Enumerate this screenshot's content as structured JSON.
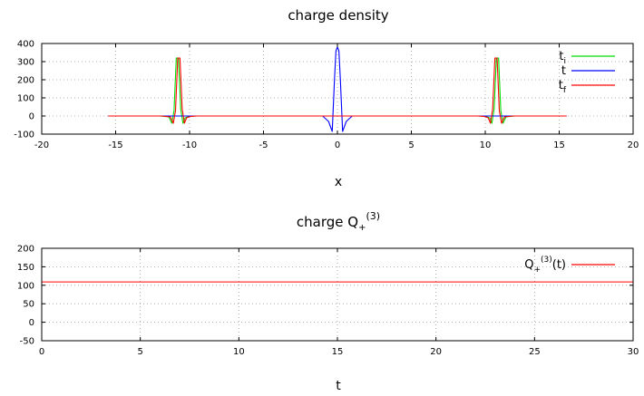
{
  "chart_data": [
    {
      "type": "line",
      "title": "charge density",
      "xlabel": "x",
      "ylabel": "",
      "xlim": [
        -20,
        20
      ],
      "ylim": [
        -100,
        400
      ],
      "xticks": [
        -20,
        -15,
        -10,
        -5,
        0,
        5,
        10,
        15,
        20
      ],
      "yticks": [
        -100,
        0,
        100,
        200,
        300,
        400
      ],
      "grid": true,
      "legend_position": "top-right",
      "series": [
        {
          "name": "t",
          "name_sub": "i",
          "color": "#00dd00",
          "x": [
            -15.5,
            -12.0,
            -11.4,
            -11.2,
            -11.05,
            -10.9,
            -10.75,
            -10.6,
            -10.45,
            -10.3,
            -10.0,
            -9.6,
            9.6,
            10.0,
            10.3,
            10.45,
            10.6,
            10.75,
            10.9,
            11.05,
            11.2,
            11.4,
            12.0,
            15.5
          ],
          "y": [
            0,
            0,
            -5,
            -40,
            30,
            320,
            320,
            40,
            -40,
            -10,
            -2,
            0,
            0,
            -2,
            -10,
            -40,
            40,
            320,
            320,
            30,
            -40,
            -5,
            0,
            0
          ]
        },
        {
          "name": "t",
          "name_sub": "",
          "color": "#0000ff",
          "x": [
            -15.5,
            -1.0,
            -0.6,
            -0.35,
            -0.2,
            -0.1,
            0.0,
            0.1,
            0.2,
            0.35,
            0.6,
            1.0,
            15.5
          ],
          "y": [
            0,
            0,
            -30,
            -85,
            200,
            360,
            380,
            360,
            200,
            -85,
            -30,
            0,
            0
          ]
        },
        {
          "name": "t",
          "name_sub": "f",
          "color": "#ff0000",
          "x": [
            -15.5,
            -11.9,
            -11.3,
            -11.1,
            -10.95,
            -10.8,
            -10.65,
            -10.5,
            -10.35,
            -10.2,
            -9.9,
            -9.5,
            9.5,
            9.9,
            10.2,
            10.35,
            10.5,
            10.65,
            10.8,
            10.95,
            11.1,
            11.3,
            11.9,
            15.5
          ],
          "y": [
            0,
            0,
            -5,
            -40,
            30,
            320,
            320,
            40,
            -40,
            -10,
            -2,
            0,
            0,
            -2,
            -10,
            -40,
            40,
            320,
            320,
            30,
            -40,
            -5,
            0,
            0
          ]
        }
      ]
    },
    {
      "type": "line",
      "title": "charge Q",
      "title_sub": "+",
      "title_sup": "(3)",
      "xlabel": "t",
      "ylabel": "",
      "xlim": [
        0,
        30
      ],
      "ylim": [
        -50,
        200
      ],
      "xticks": [
        0,
        5,
        10,
        15,
        20,
        25,
        30
      ],
      "yticks": [
        -50,
        0,
        50,
        100,
        150,
        200
      ],
      "grid": true,
      "legend_position": "top-right",
      "series": [
        {
          "name": "Q",
          "name_sub": "+",
          "name_sup": "(3)",
          "name_suffix": "(t)",
          "color": "#ff0000",
          "x": [
            0,
            5,
            10,
            15,
            20,
            25,
            30
          ],
          "y": [
            109,
            109,
            109,
            109,
            109,
            109,
            109
          ]
        }
      ]
    }
  ]
}
